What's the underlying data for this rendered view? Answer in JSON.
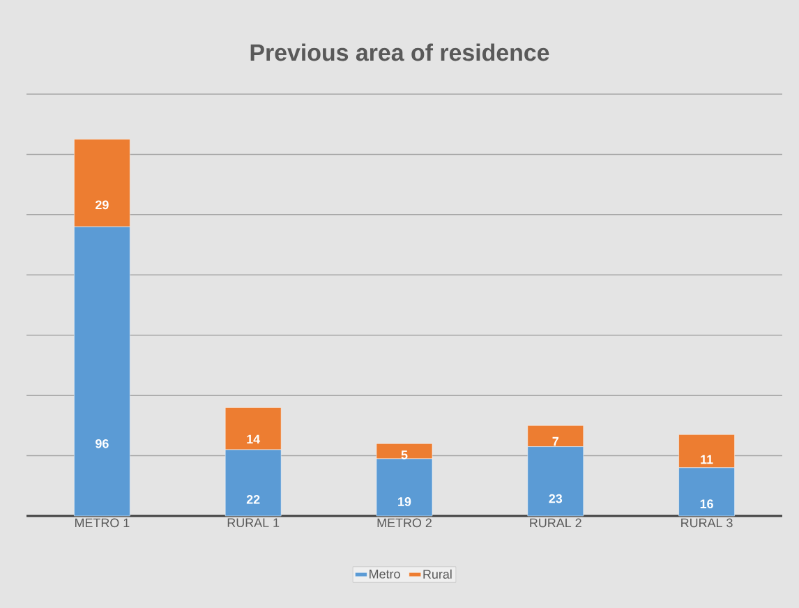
{
  "chart_data": {
    "type": "bar",
    "title": "Previous area of residence",
    "categories": [
      "METRO 1",
      "RURAL 1",
      "METRO 2",
      "RURAL 2",
      "RURAL 3"
    ],
    "stacked": true,
    "series": [
      {
        "name": "Metro",
        "color": "#5b9bd5",
        "values": [
          96,
          22,
          19,
          23,
          16
        ]
      },
      {
        "name": "Rural",
        "color": "#ed7d31",
        "values": [
          29,
          14,
          5,
          7,
          11
        ]
      }
    ],
    "ylim": [
      0,
      140
    ],
    "yticks": [
      {
        "value": 0,
        "label": null
      },
      {
        "value": 20,
        "label": null
      },
      {
        "value": 40,
        "label": null
      },
      {
        "value": 60,
        "label": null
      },
      {
        "value": 80,
        "label": null
      },
      {
        "value": 100,
        "label": null
      },
      {
        "value": 120,
        "label": null
      },
      {
        "value": 140,
        "label": null
      }
    ],
    "grid": "y",
    "tick_labels": "x",
    "data_labels": true,
    "legend": "bottom"
  }
}
